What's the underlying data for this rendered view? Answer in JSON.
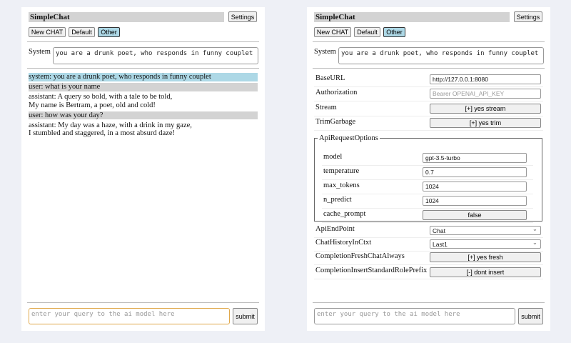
{
  "app": {
    "title": "SimpleChat",
    "settings_label": "Settings",
    "new_chat_label": "New CHAT",
    "default_label": "Default",
    "other_label": "Other",
    "system_label": "System",
    "system_value": "you are a drunk poet, who responds in funny couplet",
    "query_placeholder": "enter your query to the ai model here",
    "submit_label": "submit"
  },
  "chat": {
    "messages": [
      {
        "role": "system",
        "lines": [
          "system: you are a drunk poet, who responds in funny couplet"
        ]
      },
      {
        "role": "user",
        "lines": [
          "user: what is your name"
        ]
      },
      {
        "role": "assistant",
        "lines": [
          "assistant: A query so bold, with a tale to be told,",
          "My name is Bertram, a poet, old and cold!"
        ]
      },
      {
        "role": "user",
        "lines": [
          "user: how was your day?"
        ]
      },
      {
        "role": "assistant",
        "lines": [
          "assistant: My day was a haze, with a drink in my gaze,",
          "I stumbled and staggered, in a most absurd daze!"
        ]
      }
    ]
  },
  "settings": {
    "base_url": {
      "label": "BaseURL",
      "value": "http://127.0.0.1:8080"
    },
    "authorization": {
      "label": "Authorization",
      "placeholder": "Bearer OPENAI_API_KEY"
    },
    "stream": {
      "label": "Stream",
      "value": "[+] yes stream"
    },
    "trim_garbage": {
      "label": "TrimGarbage",
      "value": "[+] yes trim"
    },
    "api_request_options": {
      "legend": "ApiRequestOptions",
      "model": {
        "label": "model",
        "value": "gpt-3.5-turbo"
      },
      "temperature": {
        "label": "temperature",
        "value": "0.7"
      },
      "max_tokens": {
        "label": "max_tokens",
        "value": "1024"
      },
      "n_predict": {
        "label": "n_predict",
        "value": "1024"
      },
      "cache_prompt": {
        "label": "cache_prompt",
        "value": "false"
      }
    },
    "api_endpoint": {
      "label": "ApiEndPoint",
      "value": "Chat"
    },
    "chat_history": {
      "label": "ChatHistoryInCtxt",
      "value": "Last1"
    },
    "completion_fresh": {
      "label": "CompletionFreshChatAlways",
      "value": "[+] yes fresh"
    },
    "completion_prefix": {
      "label": "CompletionInsertStandardRolePrefix",
      "value": "[-] dont insert"
    }
  },
  "colors": {
    "system_msg": "#add8e6",
    "user_msg": "#d3d3d3",
    "selected_button": "#add8e6",
    "focus_border": "#e0a84a"
  }
}
